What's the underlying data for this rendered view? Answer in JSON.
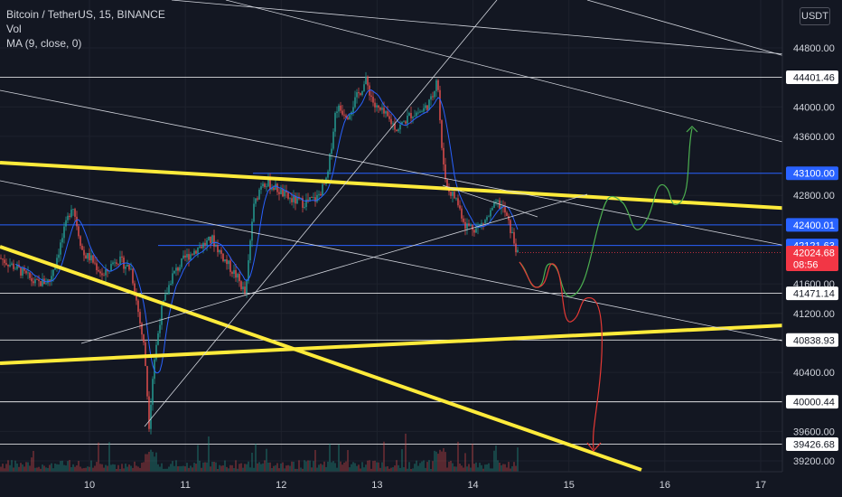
{
  "legend": {
    "symbol": "Bitcoin / TetherUS, 15, BINANCE",
    "vol": "Vol",
    "ma": "MA (9, close, 0)"
  },
  "currency_button": "USDT",
  "chart_data": {
    "type": "candlestick",
    "title": "Bitcoin / TetherUS, 15, BINANCE",
    "currency": "USDT",
    "x_ticks": [
      "10",
      "11",
      "12",
      "13",
      "14",
      "15",
      "16",
      "17"
    ],
    "y_ticks": [
      44800,
      44000,
      43600,
      42800,
      41600,
      41200,
      40400,
      39600,
      39200
    ],
    "ylim": [
      39100,
      45300
    ],
    "price_labels": [
      {
        "value": "44401.46",
        "style": "white"
      },
      {
        "value": "43100.00",
        "style": "blue"
      },
      {
        "value": "42400.01",
        "style": "blue"
      },
      {
        "value": "42121.63",
        "style": "blue"
      },
      {
        "value": "42024.68",
        "style": "red",
        "countdown": "08:56"
      },
      {
        "value": "41471.14",
        "style": "white"
      },
      {
        "value": "40838.93",
        "style": "white"
      },
      {
        "value": "40000.44",
        "style": "white"
      },
      {
        "value": "39426.68",
        "style": "white"
      }
    ],
    "key_prices": {
      "high": 44500,
      "low": 39700,
      "current": 42024.68
    },
    "colors": {
      "background": "#131722",
      "candle_up": "#26a69a",
      "candle_down": "#ef5350",
      "ma_line": "#2962ff",
      "trendline_yellow": "#ffeb3b",
      "projection_green": "#4caf50",
      "projection_red": "#e53935",
      "horizontal_level_blue": "#2962ff",
      "last_price": "#f23645"
    }
  }
}
